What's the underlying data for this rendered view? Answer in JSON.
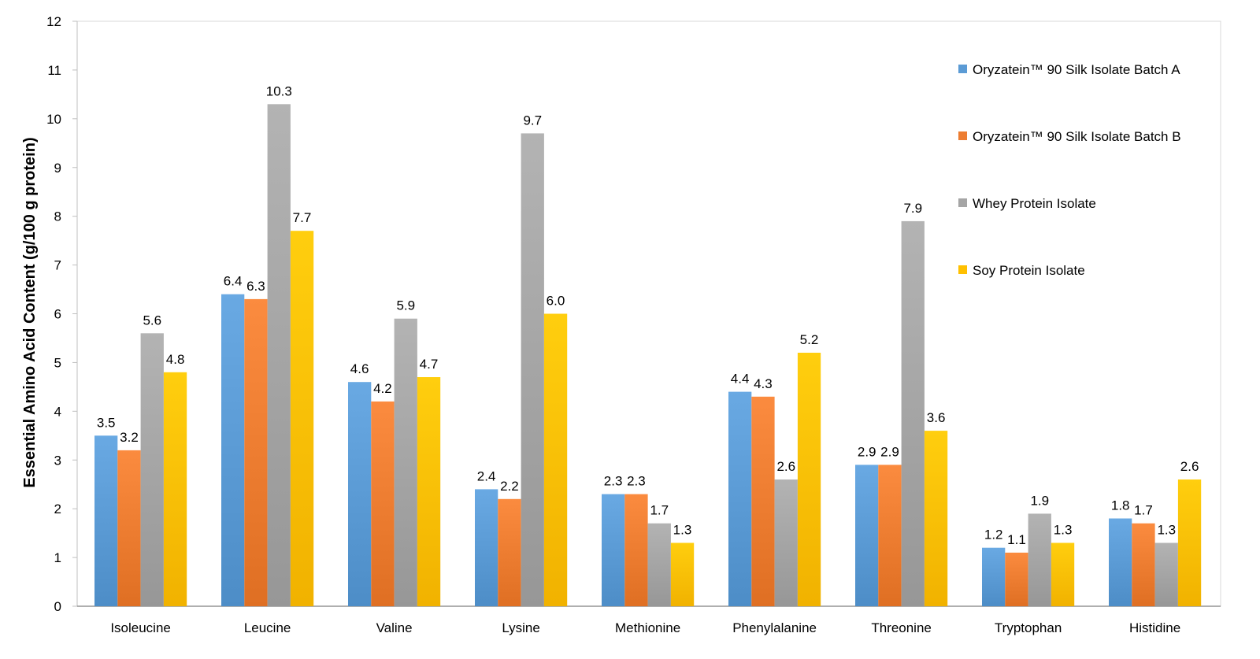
{
  "chart_data": {
    "type": "bar",
    "title": "",
    "xlabel": "",
    "ylabel": "Essential Amino Acid Content (g/100 g protein)",
    "ylim": [
      0,
      12
    ],
    "yticks": [
      "0",
      "1",
      "2",
      "3",
      "4",
      "5",
      "6",
      "7",
      "8",
      "9",
      "10",
      "11",
      "12"
    ],
    "grid": false,
    "legend_position": "right",
    "categories": [
      "Isoleucine",
      "Leucine",
      "Valine",
      "Lysine",
      "Methionine",
      "Phenylalanine",
      "Threonine",
      "Tryptophan",
      "Histidine"
    ],
    "series": [
      {
        "name": "Oryzatein™ 90 Silk Isolate Batch A",
        "color": "#5B9BD5",
        "values": [
          3.5,
          6.4,
          4.6,
          2.4,
          2.3,
          4.4,
          2.9,
          1.2,
          1.8
        ],
        "labels": [
          "3.5",
          "6.4",
          "4.6",
          "2.4",
          "2.3",
          "4.4",
          "2.9",
          "1.2",
          "1.8"
        ]
      },
      {
        "name": "Oryzatein™ 90 Silk Isolate Batch B",
        "color": "#ED7D31",
        "values": [
          3.2,
          6.3,
          4.2,
          2.2,
          2.3,
          4.3,
          2.9,
          1.1,
          1.7
        ],
        "labels": [
          "3.2",
          "6.3",
          "4.2",
          "2.2",
          "2.3",
          "4.3",
          "2.9",
          "1.1",
          "1.7"
        ]
      },
      {
        "name": "Whey Protein Isolate",
        "color": "#A5A5A5",
        "values": [
          5.6,
          10.3,
          5.9,
          9.7,
          1.7,
          2.6,
          7.9,
          1.9,
          1.3
        ],
        "labels": [
          "5.6",
          "10.3",
          "5.9",
          "9.7",
          "1.7",
          "2.6",
          "7.9",
          "1.9",
          "1.3"
        ]
      },
      {
        "name": "Soy Protein Isolate",
        "color": "#FFC000",
        "values": [
          4.8,
          7.7,
          4.7,
          6.0,
          1.3,
          5.2,
          3.6,
          1.3,
          2.6
        ],
        "labels": [
          "4.8",
          "7.7",
          "4.7",
          "6.0",
          "1.3",
          "5.2",
          "3.6",
          "1.3",
          "2.6"
        ]
      }
    ]
  }
}
